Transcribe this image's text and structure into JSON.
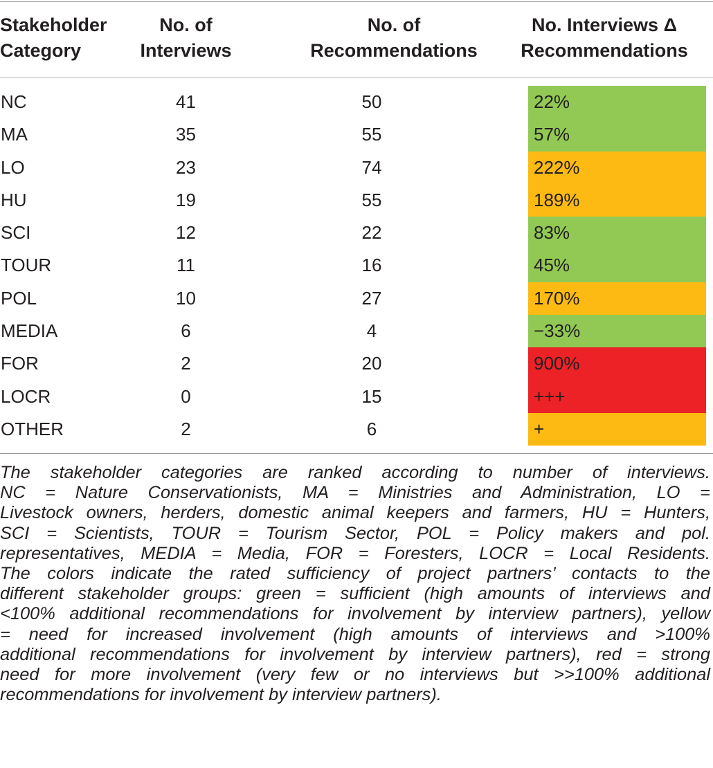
{
  "table": {
    "headers": [
      {
        "line1": "Stakeholder",
        "line2": "Category"
      },
      {
        "line1": "No. of",
        "line2": "Interviews"
      },
      {
        "line1": "No. of",
        "line2": "Recommendations"
      },
      {
        "line1": "No. Interviews Δ",
        "line2": "Recommendations"
      }
    ],
    "rows": [
      {
        "category": "NC",
        "interviews": "41",
        "recommendations": "50",
        "delta": "22%",
        "color": "#92c954"
      },
      {
        "category": "MA",
        "interviews": "35",
        "recommendations": "55",
        "delta": "57%",
        "color": "#92c954"
      },
      {
        "category": "LO",
        "interviews": "23",
        "recommendations": "74",
        "delta": "222%",
        "color": "#fcba13"
      },
      {
        "category": "HU",
        "interviews": "19",
        "recommendations": "55",
        "delta": "189%",
        "color": "#fcba13"
      },
      {
        "category": "SCI",
        "interviews": "12",
        "recommendations": "22",
        "delta": "83%",
        "color": "#92c954"
      },
      {
        "category": "TOUR",
        "interviews": "11",
        "recommendations": "16",
        "delta": "45%",
        "color": "#92c954"
      },
      {
        "category": "POL",
        "interviews": "10",
        "recommendations": "27",
        "delta": "170%",
        "color": "#fcba13"
      },
      {
        "category": "MEDIA",
        "interviews": "6",
        "recommendations": "4",
        "delta": "−33%",
        "color": "#92c954"
      },
      {
        "category": "FOR",
        "interviews": "2",
        "recommendations": "20",
        "delta": "900%",
        "color": "#ec2227"
      },
      {
        "category": "LOCR",
        "interviews": "0",
        "recommendations": "15",
        "delta": "+++",
        "color": "#ec2227"
      },
      {
        "category": "OTHER",
        "interviews": "2",
        "recommendations": "6",
        "delta": "+",
        "color": "#fcba13"
      }
    ]
  },
  "caption": {
    "lines": [
      "The stakeholder categories are ranked according to number of interviews.",
      "NC = Nature Conservationists, MA = Ministries and Administration, LO =",
      "Livestock owners, herders, domestic animal keepers and farmers, HU = Hunters,",
      "SCI = Scientists, TOUR = Tourism Sector, POL = Policy makers and pol.",
      "representatives, MEDIA = Media, FOR = Foresters, LOCR = Local Residents.",
      "The colors indicate the rated sufficiency of project partners’ contacts to the",
      "different stakeholder groups: green = sufficient (high amounts of interviews and",
      "<100% additional recommendations for involvement by interview partners), yellow",
      "= need for increased involvement (high amounts of interviews and >100%",
      "additional recommendations for involvement by interview partners), red = strong",
      "need for more involvement (very few or no interviews but >>100% additional",
      "recommendations for involvement by interview partners)."
    ]
  }
}
